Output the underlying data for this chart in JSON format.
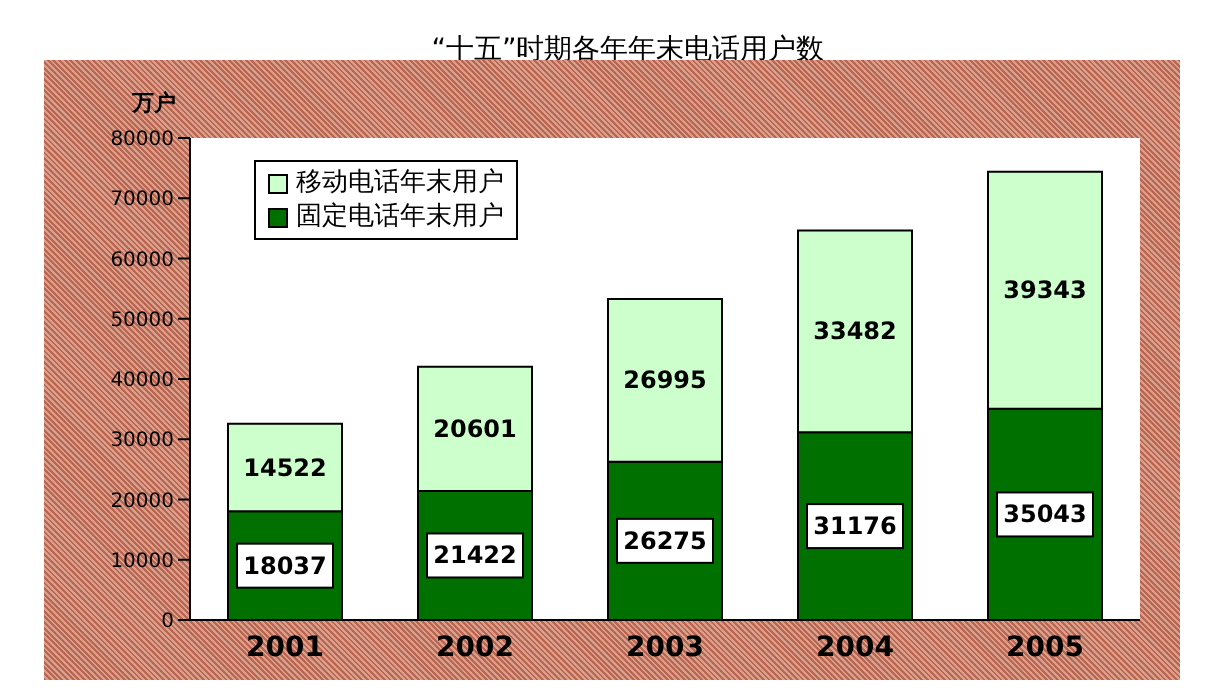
{
  "chart_data": {
    "type": "bar",
    "title": "“十五”时期各年年末电话用户数",
    "ylabel": "万户",
    "categories": [
      "2001",
      "2002",
      "2003",
      "2004",
      "2005"
    ],
    "series": [
      {
        "name": "固定电话年末用户",
        "color": "#007000",
        "values": [
          18037,
          21422,
          26275,
          31176,
          35043
        ]
      },
      {
        "name": "移动电话年末用户",
        "color": "#ccffcc",
        "values": [
          14522,
          20601,
          26995,
          33482,
          39343
        ]
      }
    ],
    "stacked": true,
    "data_labels": true,
    "ylim": [
      0,
      80000
    ],
    "yticks": [
      0,
      10000,
      20000,
      30000,
      40000,
      50000,
      60000,
      70000,
      80000
    ],
    "grid": false,
    "legend": "top left"
  }
}
